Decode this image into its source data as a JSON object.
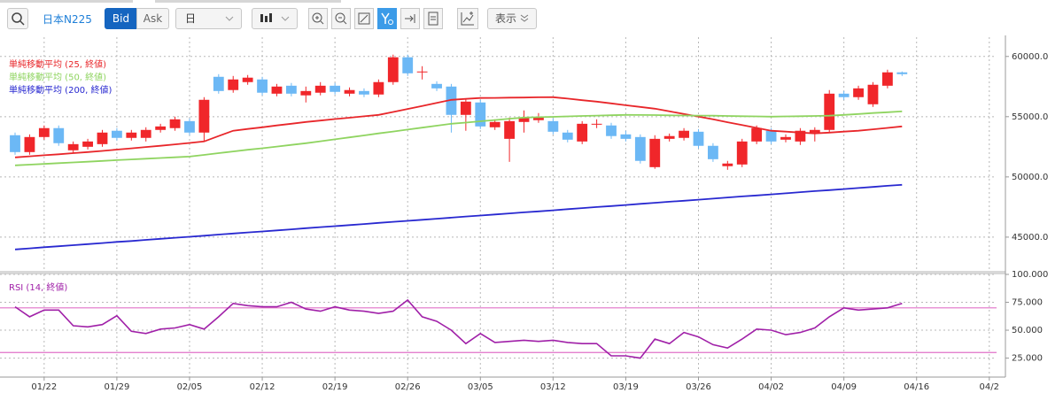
{
  "toolbar": {
    "symbol": "日本N225",
    "bid": "Bid",
    "ask": "Ask",
    "period": "日",
    "display": "表示"
  },
  "chart_data": [
    {
      "type": "candlestick",
      "categories": [
        null,
        null,
        "01/22",
        null,
        null,
        null,
        null,
        "01/29",
        null,
        null,
        null,
        null,
        "02/05",
        null,
        null,
        null,
        null,
        "02/12",
        null,
        null,
        null,
        null,
        "02/19",
        null,
        null,
        null,
        null,
        "02/26",
        null,
        null,
        null,
        null,
        "03/05",
        null,
        null,
        null,
        null,
        "03/12",
        null,
        null,
        null,
        null,
        "03/19",
        null,
        null,
        null,
        null,
        "03/26",
        null,
        null,
        null,
        null,
        "04/02",
        null,
        null,
        null,
        null,
        "04/09",
        null,
        null,
        null,
        null,
        "04/16",
        null,
        null,
        null,
        null,
        "04/2"
      ],
      "open": [
        53460,
        52060,
        53310,
        54050,
        52210,
        52500,
        52720,
        53830,
        53240,
        53240,
        53900,
        54050,
        54630,
        53680,
        58310,
        57210,
        57870,
        58090,
        56910,
        57570,
        56770,
        56990,
        57570,
        56910,
        57130,
        56840,
        57870,
        59930,
        58680,
        57720,
        57500,
        55150,
        56180,
        54120,
        53160,
        54560,
        54710,
        54630,
        53680,
        52940,
        54340,
        54270,
        53530,
        53310,
        50810,
        53160,
        53240,
        53750,
        52580,
        50890,
        51030,
        52940,
        53830,
        53090,
        52940,
        53680,
        53900,
        56910,
        56620,
        56030,
        57570,
        58680,
        null,
        null,
        null,
        null,
        null,
        null
      ],
      "high": [
        53680,
        53530,
        54270,
        54270,
        52940,
        53160,
        53900,
        54050,
        53900,
        54120,
        54410,
        55000,
        54860,
        56620,
        58530,
        58380,
        58460,
        58310,
        57720,
        57800,
        57500,
        57870,
        57800,
        57430,
        57350,
        58090,
        60150,
        60150,
        59190,
        57940,
        57720,
        56470,
        56400,
        54780,
        54930,
        55520,
        55300,
        54860,
        53900,
        54630,
        54780,
        54490,
        53830,
        53530,
        53460,
        53600,
        54050,
        53970,
        52800,
        51330,
        53160,
        54270,
        54050,
        53530,
        54050,
        54120,
        57210,
        57130,
        57570,
        57870,
        58900,
        58750,
        null,
        null,
        null,
        null,
        null,
        null
      ],
      "low": [
        51840,
        51840,
        53090,
        52580,
        51990,
        52280,
        52500,
        53020,
        53020,
        52940,
        53680,
        53830,
        53460,
        52940,
        56910,
        56990,
        57650,
        56770,
        56690,
        56690,
        56180,
        56770,
        56840,
        56690,
        56620,
        56620,
        57650,
        58380,
        58090,
        57130,
        53680,
        53830,
        53970,
        53900,
        51250,
        53680,
        54490,
        53530,
        52870,
        52720,
        54050,
        53160,
        52940,
        51110,
        50670,
        52940,
        53020,
        52360,
        51250,
        50590,
        50810,
        52720,
        52720,
        52870,
        52650,
        52940,
        53680,
        56400,
        56400,
        55810,
        57350,
        58380,
        null,
        null,
        null,
        null,
        null,
        null
      ],
      "close": [
        52060,
        53310,
        54050,
        52800,
        52720,
        52940,
        53680,
        53240,
        53680,
        53900,
        54190,
        54780,
        53680,
        56400,
        57130,
        58090,
        58240,
        56990,
        57500,
        56910,
        57130,
        57570,
        57060,
        57210,
        56840,
        57870,
        59930,
        58600,
        58750,
        57350,
        55150,
        56250,
        54190,
        54560,
        54630,
        54930,
        54930,
        53750,
        53090,
        54410,
        54410,
        53390,
        53160,
        51330,
        53160,
        53390,
        53830,
        52580,
        51470,
        51110,
        52940,
        54050,
        52940,
        53310,
        53830,
        53900,
        56910,
        56620,
        57350,
        57650,
        58680,
        58530,
        null,
        null,
        null,
        null,
        null,
        null
      ],
      "up_color": "#f0262a",
      "down_color": "#6cb8f5",
      "series": [
        {
          "name": "単純移動平均 (25, 終値)",
          "color": "#e8262a",
          "values": [
            51620,
            51710,
            51800,
            51880,
            51970,
            52060,
            52160,
            52270,
            52370,
            52480,
            52580,
            52700,
            52820,
            52940,
            53390,
            53830,
            53980,
            54120,
            54270,
            54410,
            54560,
            54680,
            54800,
            54910,
            55030,
            55150,
            55390,
            55640,
            55880,
            56140,
            56400,
            56480,
            56550,
            56560,
            56580,
            56590,
            56610,
            56620,
            56500,
            56370,
            56250,
            56100,
            55950,
            55810,
            55660,
            55440,
            55220,
            55000,
            54780,
            54540,
            54310,
            54070,
            53830,
            53760,
            53680,
            53610,
            53680,
            53760,
            53830,
            53950,
            54070,
            54190,
            null,
            null,
            null,
            null,
            null,
            null
          ]
        },
        {
          "name": "単純移動平均 (50, 終値)",
          "color": "#8fd460",
          "values": [
            50960,
            51020,
            51080,
            51140,
            51200,
            51260,
            51330,
            51390,
            51450,
            51510,
            51570,
            51630,
            51690,
            51830,
            51970,
            52110,
            52250,
            52380,
            52520,
            52660,
            52800,
            52960,
            53120,
            53280,
            53440,
            53610,
            53770,
            53930,
            54090,
            54250,
            54410,
            54510,
            54620,
            54720,
            54830,
            54930,
            54960,
            54990,
            55020,
            55060,
            55090,
            55120,
            55150,
            55140,
            55130,
            55110,
            55100,
            55090,
            55080,
            55060,
            55040,
            55020,
            55000,
            55020,
            55040,
            55060,
            55080,
            55150,
            55220,
            55300,
            55370,
            55440,
            null,
            null,
            null,
            null,
            null,
            null
          ]
        },
        {
          "name": "単純移動平均 (200, 終値)",
          "color": "#2828d0",
          "values": [
            43980,
            44070,
            44160,
            44240,
            44330,
            44420,
            44510,
            44600,
            44680,
            44770,
            44860,
            44950,
            45030,
            45120,
            45210,
            45300,
            45390,
            45470,
            45560,
            45650,
            45740,
            45830,
            45910,
            46000,
            46090,
            46180,
            46270,
            46350,
            46440,
            46530,
            46620,
            46710,
            46790,
            46880,
            46970,
            47060,
            47140,
            47230,
            47320,
            47410,
            47500,
            47580,
            47670,
            47760,
            47850,
            47940,
            48020,
            48110,
            48200,
            48290,
            48380,
            48460,
            48550,
            48640,
            48730,
            48820,
            48900,
            48990,
            49080,
            49170,
            49260,
            49340,
            null,
            null,
            null,
            null,
            null,
            null
          ]
        }
      ],
      "ylim": [
        42200,
        61600
      ],
      "yticks": [
        {
          "value": 45000,
          "label": "45000.0"
        },
        {
          "value": 50000,
          "label": "50000.0"
        },
        {
          "value": 55000,
          "label": "55000.0"
        },
        {
          "value": 60000,
          "label": "60000.0"
        }
      ],
      "grid": true
    },
    {
      "type": "line",
      "series": [
        {
          "name": "RSI (14, 終値)",
          "color": "#a020a8",
          "values": [
            71,
            62,
            68,
            68,
            54,
            53,
            55,
            63,
            49,
            47,
            51,
            52,
            55,
            51,
            62,
            74,
            72,
            71,
            71,
            75,
            69,
            67,
            71,
            68,
            67,
            65,
            67,
            77,
            62,
            58,
            50,
            38,
            47,
            39,
            40,
            41,
            40,
            41,
            39,
            38,
            38,
            27,
            27,
            25,
            42,
            38,
            48,
            44,
            37,
            34,
            42,
            51,
            50,
            46,
            48,
            52,
            62,
            70,
            68,
            69,
            70,
            74,
            null,
            null,
            null,
            null,
            null,
            null
          ]
        }
      ],
      "levels": [
        70,
        30
      ],
      "level_color": "#e070c8",
      "ylim": [
        8,
        100
      ],
      "yticks": [
        {
          "value": 25,
          "label": "25.000"
        },
        {
          "value": 50,
          "label": "50.000"
        },
        {
          "value": 75,
          "label": "75.000"
        },
        {
          "value": 100,
          "label": "100.000"
        }
      ],
      "grid": true
    }
  ]
}
